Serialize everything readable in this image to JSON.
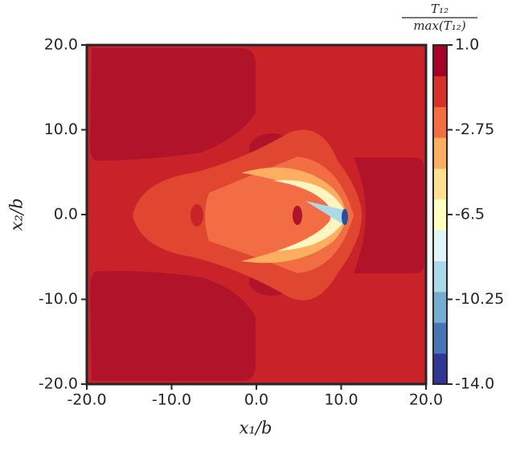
{
  "chart_data": {
    "type": "contour",
    "xlabel": "x₁/b",
    "ylabel": "x₂/b",
    "colorbar_label": {
      "numerator": "T₁₂",
      "denominator": "max(T₁₂)"
    },
    "xlim": [
      -20,
      20
    ],
    "ylim": [
      -20,
      20
    ],
    "xticks": [
      {
        "value": -20,
        "label": "-20.0"
      },
      {
        "value": -10,
        "label": "-10.0"
      },
      {
        "value": 0,
        "label": "0.0"
      },
      {
        "value": 10,
        "label": "10.0"
      },
      {
        "value": 20,
        "label": "20.0"
      }
    ],
    "yticks": [
      {
        "value": -20,
        "label": "-20.0"
      },
      {
        "value": -10,
        "label": "-10.0"
      },
      {
        "value": 0,
        "label": "0.0"
      },
      {
        "value": 10,
        "label": "10.0"
      },
      {
        "value": 20,
        "label": "20.0"
      }
    ],
    "clim": [
      -14,
      1
    ],
    "cticks": [
      {
        "value": 1,
        "label": "1.0"
      },
      -2.75,
      -6.5,
      -10.25,
      {
        "value": -14,
        "label": "-14.0"
      }
    ],
    "colormap": [
      "#313695",
      "#4575b4",
      "#74add1",
      "#abd9e9",
      "#e0f3f8",
      "#ffffbf",
      "#fee090",
      "#fdae61",
      "#f46d43",
      "#d73027",
      "#a50026"
    ]
  }
}
